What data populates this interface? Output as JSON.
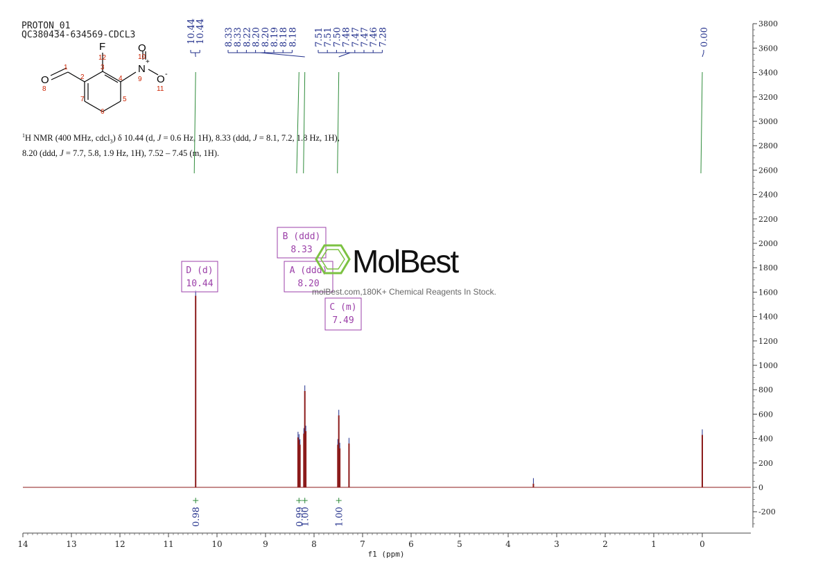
{
  "header": {
    "line1": "PROTON_01",
    "line2": "QC380434-634569-CDCL3"
  },
  "description": {
    "nucleus": "1",
    "part1": "H NMR (400 MHz, cdcl",
    "sub3": "3",
    "part2": ") δ 10.44 (d, ",
    "j1": "J",
    "part3": " = 0.6 Hz, 1H), 8.33 (ddd, ",
    "j2": "J",
    "part4": " = 8.1, 7.2, 1.8 Hz, 1H),",
    "line2a": "8.20 (ddd, ",
    "j3": "J",
    "line2b": " = 7.7, 5.8, 1.9 Hz, 1H), 7.52 – 7.45 (m, 1H)."
  },
  "structure": {
    "atom_labels": [
      "F",
      "N",
      "O",
      "O",
      "O"
    ],
    "charges": [
      "+",
      "-"
    ],
    "numbers": [
      "1",
      "2",
      "3",
      "4",
      "5",
      "6",
      "7",
      "8",
      "9",
      "10",
      "11",
      "12"
    ]
  },
  "watermark": {
    "brand": "MolBest",
    "tagline": "molBest.com,180K+ Chemical Reagents In Stock."
  },
  "colors": {
    "spectrum": "#8b1a1a",
    "peak_labels": "#1f2d8a",
    "integral": "#2e8b3a",
    "multiplet_box": "#9b3fa8",
    "axis": "#444444",
    "watermark": "#7cc242"
  },
  "chart_data": {
    "type": "line",
    "xlabel": "f1 (ppm)",
    "x_reversed": true,
    "xlim": [
      14.0,
      -1.0
    ],
    "ylim": [
      -250,
      3800
    ],
    "x_ticks": [
      "14",
      "13",
      "12",
      "11",
      "10",
      "9",
      "8",
      "7",
      "6",
      "5",
      "4",
      "3",
      "2",
      "1",
      "0"
    ],
    "y_ticks": [
      "3800",
      "3600",
      "3400",
      "3200",
      "3000",
      "2800",
      "2600",
      "2400",
      "2200",
      "2000",
      "1800",
      "1600",
      "1400",
      "1200",
      "1000",
      "800",
      "600",
      "400",
      "200",
      "0",
      "-200"
    ],
    "peaks": [
      {
        "ppm": 10.44,
        "height": 1570
      },
      {
        "ppm": 8.33,
        "height": 410
      },
      {
        "ppm": 8.31,
        "height": 390
      },
      {
        "ppm": 8.29,
        "height": 350
      },
      {
        "ppm": 8.21,
        "height": 440
      },
      {
        "ppm": 8.19,
        "height": 790
      },
      {
        "ppm": 8.17,
        "height": 460
      },
      {
        "ppm": 7.51,
        "height": 350
      },
      {
        "ppm": 7.49,
        "height": 590
      },
      {
        "ppm": 7.47,
        "height": 320
      },
      {
        "ppm": 7.28,
        "height": 360
      },
      {
        "ppm": 3.48,
        "height": 30
      },
      {
        "ppm": 0.0,
        "height": 430
      }
    ],
    "peak_label_groups": [
      {
        "labels": [
          "10.44",
          "10.44"
        ],
        "anchor_ppm": 10.44
      },
      {
        "labels": [
          "8.33",
          "8.33",
          "8.22",
          "8.20",
          "8.20",
          "8.19",
          "8.18",
          "8.18"
        ],
        "anchor_ppm": 8.19
      },
      {
        "labels": [
          "7.51",
          "7.51",
          "7.50",
          "7.48",
          "7.47",
          "7.47",
          "7.46",
          "7.28"
        ],
        "anchor_ppm": 7.49
      },
      {
        "labels": [
          "0.00"
        ],
        "anchor_ppm": 0.0
      }
    ],
    "multiplets": [
      {
        "id": "D",
        "type": "(d)",
        "shift": "10.44",
        "ppm": 10.44
      },
      {
        "id": "B",
        "type": "(ddd)",
        "shift": "8.33",
        "ppm": 8.33
      },
      {
        "id": "A",
        "type": "(ddd)",
        "shift": "8.20",
        "ppm": 8.2
      },
      {
        "id": "C",
        "type": "(m)",
        "shift": "7.49",
        "ppm": 7.49
      }
    ],
    "integrals": [
      {
        "value": "0.98",
        "ppm": 10.44
      },
      {
        "value": "0.99",
        "ppm": 8.31
      },
      {
        "value": "1.00",
        "ppm": 8.19
      },
      {
        "value": "1.00",
        "ppm": 7.49
      }
    ]
  }
}
